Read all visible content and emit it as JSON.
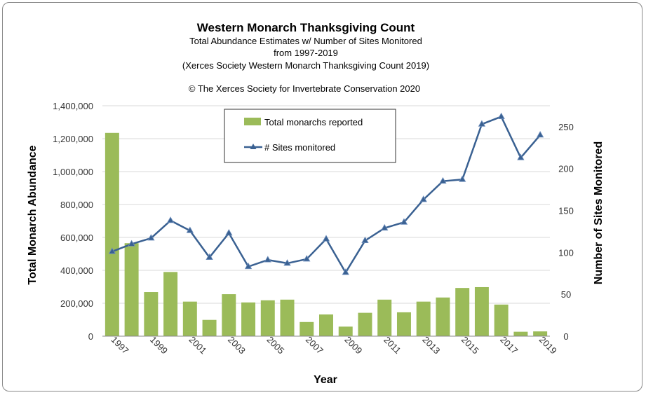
{
  "chart_data": {
    "type": "bar",
    "title": "Western Monarch Thanksgiving Count",
    "subtitle_lines": [
      "Total Abundance Estimates w/ Number of Sites Monitored",
      "from 1997-2019",
      "(Xerces Society Western Monarch Thanksgiving Count 2019)"
    ],
    "copyright": "© The Xerces Society for Invertebrate Conservation 2020",
    "xlabel": "Year",
    "ylabel": "Total Monarch Abundance",
    "y2label": "Number of Sites Monitored",
    "categories": [
      "1997",
      "1998",
      "1999",
      "2000",
      "2001",
      "2002",
      "2003",
      "2004",
      "2005",
      "2006",
      "2007",
      "2008",
      "2009",
      "2010",
      "2011",
      "2012",
      "2013",
      "2014",
      "2015",
      "2016",
      "2017",
      "2018",
      "2019"
    ],
    "x_tick_labels": [
      "1997",
      "1999",
      "2001",
      "2003",
      "2005",
      "2007",
      "2009",
      "2011",
      "2013",
      "2015",
      "2017",
      "2019"
    ],
    "ylim": [
      0,
      1400000
    ],
    "y_ticks": [
      "0",
      "200,000",
      "400,000",
      "600,000",
      "800,000",
      "1,000,000",
      "1,200,000",
      "1,400,000"
    ],
    "y2lim": [
      0,
      275
    ],
    "y2_ticks": [
      "0",
      "50",
      "100",
      "150",
      "200",
      "250"
    ],
    "series": [
      {
        "name": "Total monarchs reported",
        "kind": "bar",
        "axis": "left",
        "color": "#9bbb59",
        "values": [
          1235000,
          565000,
          268000,
          390000,
          210000,
          99000,
          255000,
          205000,
          218000,
          222000,
          86000,
          132000,
          58000,
          142000,
          222000,
          145000,
          210000,
          235000,
          293000,
          298000,
          192000,
          27000,
          29000
        ]
      },
      {
        "name": "# Sites monitored",
        "kind": "line",
        "axis": "right",
        "color": "#3a6192",
        "values": [
          101,
          110,
          117,
          138,
          126,
          94,
          123,
          83,
          91,
          87,
          92,
          116,
          76,
          114,
          129,
          136,
          163,
          185,
          187,
          253,
          262,
          213,
          240
        ]
      }
    ],
    "legend": {
      "placement": "top-center"
    },
    "grid": true
  }
}
